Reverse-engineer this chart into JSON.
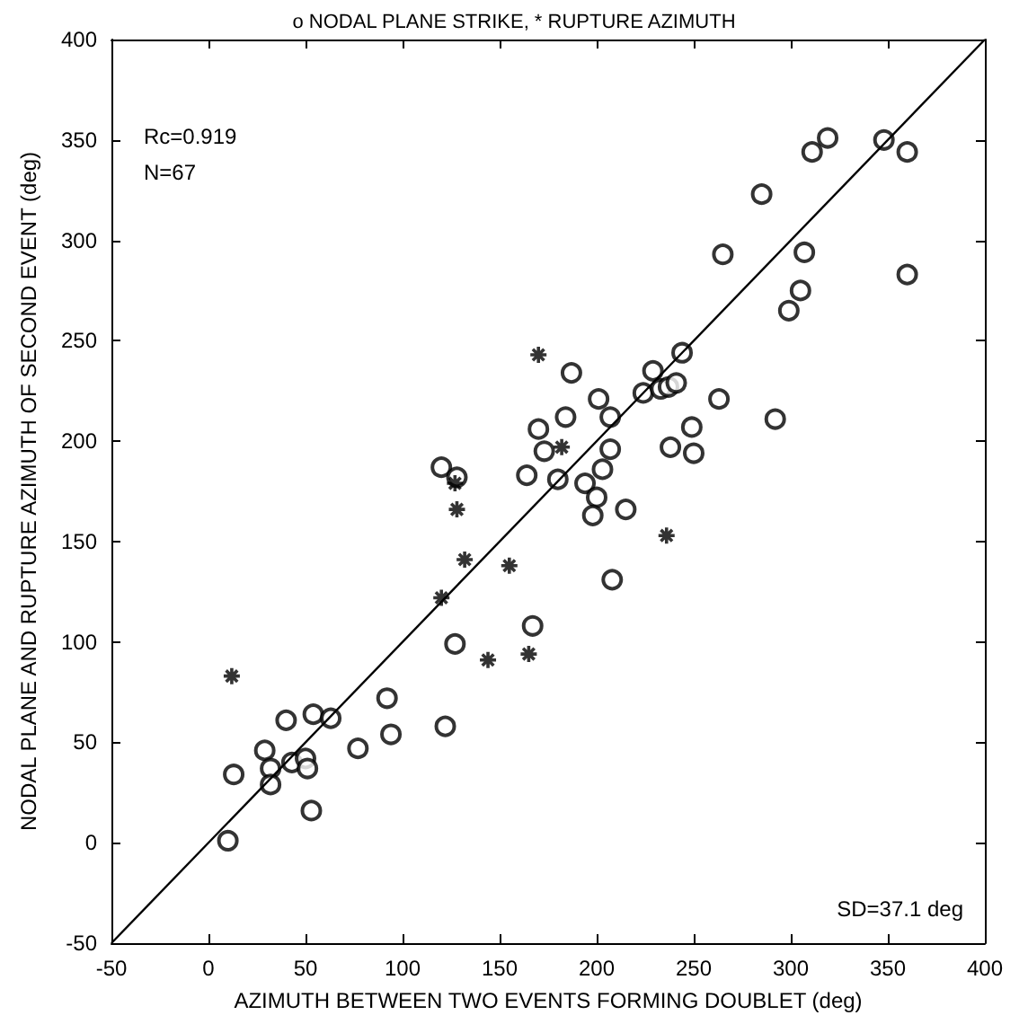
{
  "chart_data": {
    "type": "scatter",
    "title": "o NODAL PLANE STRIKE, * RUPTURE AZIMUTH",
    "xlabel": "AZIMUTH BETWEEN TWO EVENTS FORMING DOUBLET (deg)",
    "ylabel": "NODAL PLANE AND RUPTURE AZIMUTH OF SECOND EVENT (deg)",
    "annotations": [
      "Rc=0.919",
      "N=67",
      "SD=37.1 deg"
    ],
    "xlim": [
      -50,
      400
    ],
    "ylim": [
      -50,
      400
    ],
    "xticks": [
      -50,
      0,
      50,
      100,
      150,
      200,
      250,
      300,
      350,
      400
    ],
    "yticks": [
      -50,
      0,
      50,
      100,
      150,
      200,
      250,
      300,
      350,
      400
    ],
    "grid": false,
    "series": [
      {
        "color": "#000000",
        "marker": "circle",
        "x": [
          10,
          13,
          29,
          32,
          32,
          40,
          43,
          50,
          51,
          54,
          53,
          63,
          77,
          92,
          94,
          122,
          127,
          167,
          120,
          128,
          170,
          173,
          164,
          180,
          194,
          200,
          203,
          207,
          184,
          187,
          201,
          207,
          215,
          224,
          229,
          233,
          237,
          241,
          244,
          263,
          238,
          249,
          250,
          292,
          265,
          285,
          307,
          305,
          299,
          311,
          319,
          348,
          360,
          360,
          198,
          208
        ],
        "values": [
          1,
          34,
          46,
          37,
          29,
          61,
          40,
          42,
          37,
          64,
          16,
          62,
          47,
          72,
          54,
          58,
          99,
          108,
          187,
          182,
          206,
          195,
          183,
          181,
          179,
          172,
          186,
          196,
          212,
          234,
          221,
          212,
          166,
          224,
          235,
          226,
          227,
          229,
          244,
          221,
          197,
          207,
          194,
          211,
          293,
          323,
          294,
          275,
          265,
          344,
          351,
          350,
          344,
          283,
          163,
          131
        ]
      },
      {
        "color": "#000000",
        "marker": "cross",
        "x": [
          12,
          127,
          128,
          132,
          120,
          155,
          144,
          165,
          170,
          182,
          236
        ],
        "values": [
          83,
          179,
          166,
          141,
          122,
          138,
          91,
          94,
          243,
          197,
          153
        ]
      },
      {
        "type": "line",
        "color": "#000000",
        "marker": "none",
        "line_style": "solid",
        "x": [
          -50,
          400
        ],
        "values": [
          -50,
          400
        ]
      }
    ]
  }
}
